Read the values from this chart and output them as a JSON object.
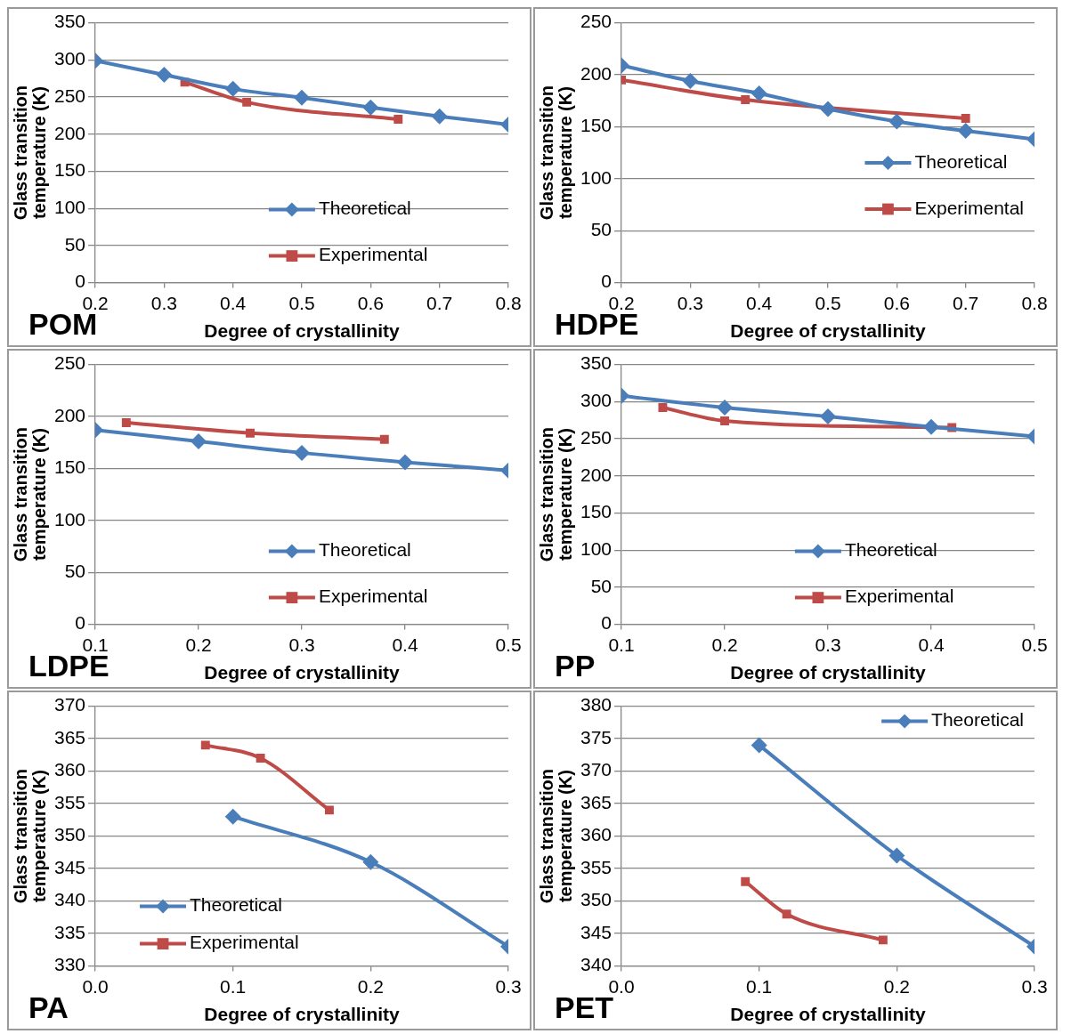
{
  "chart_data": [
    {
      "type": "line",
      "title": "POM",
      "xlabel": "Degree of crystallinity",
      "ylabel": "Glass transition temperature (K)",
      "xlim": [
        0.2,
        0.8
      ],
      "xticks": [
        0.2,
        0.3,
        0.4,
        0.5,
        0.6,
        0.7,
        0.8
      ],
      "ylim": [
        0,
        350
      ],
      "yticks": [
        0,
        50,
        100,
        150,
        200,
        250,
        300,
        350
      ],
      "grid": "y",
      "legend": "bottom right",
      "series": [
        {
          "name": "Theoretical",
          "color": "#4a7ebb",
          "marker": "diamond",
          "x": [
            0.2,
            0.3,
            0.4,
            0.5,
            0.6,
            0.7,
            0.8
          ],
          "values": [
            299,
            280,
            261,
            249,
            236,
            224,
            213
          ]
        },
        {
          "name": "Experimental",
          "color": "#be4b48",
          "marker": "square",
          "x": [
            0.33,
            0.42,
            0.64
          ],
          "values": [
            270,
            243,
            220
          ]
        }
      ]
    },
    {
      "type": "line",
      "title": "HDPE",
      "xlabel": "Degree of crystallinity",
      "ylabel": "Glass transition temperature (K)",
      "xlim": [
        0.2,
        0.8
      ],
      "xticks": [
        0.2,
        0.3,
        0.4,
        0.5,
        0.6,
        0.7,
        0.8
      ],
      "ylim": [
        0,
        250
      ],
      "yticks": [
        0,
        50,
        100,
        150,
        200,
        250
      ],
      "grid": "y",
      "legend": "right",
      "series": [
        {
          "name": "Theoretical",
          "color": "#4a7ebb",
          "marker": "diamond",
          "x": [
            0.2,
            0.3,
            0.4,
            0.5,
            0.6,
            0.7,
            0.8
          ],
          "values": [
            209,
            194,
            182,
            167,
            155,
            146,
            138
          ]
        },
        {
          "name": "Experimental",
          "color": "#be4b48",
          "marker": "square",
          "x": [
            0.2,
            0.38,
            0.7
          ],
          "values": [
            195,
            176,
            158
          ]
        }
      ]
    },
    {
      "type": "line",
      "title": "LDPE",
      "xlabel": "Degree of crystallinity",
      "ylabel": "Glass transition temperature (K)",
      "xlim": [
        0.1,
        0.5
      ],
      "xticks": [
        0.1,
        0.2,
        0.3,
        0.4,
        0.5
      ],
      "ylim": [
        0,
        250
      ],
      "yticks": [
        0,
        50,
        100,
        150,
        200,
        250
      ],
      "grid": "y",
      "legend": "bottom right",
      "series": [
        {
          "name": "Theoretical",
          "color": "#4a7ebb",
          "marker": "diamond",
          "x": [
            0.1,
            0.2,
            0.3,
            0.4,
            0.5
          ],
          "values": [
            187,
            176,
            165,
            156,
            148
          ]
        },
        {
          "name": "Experimental",
          "color": "#be4b48",
          "marker": "square",
          "x": [
            0.13,
            0.25,
            0.38
          ],
          "values": [
            194,
            184,
            178
          ]
        }
      ]
    },
    {
      "type": "line",
      "title": "PP",
      "xlabel": "Degree of crystallinity",
      "ylabel": "Glass transition temperature (K)",
      "xlim": [
        0.1,
        0.5
      ],
      "xticks": [
        0.1,
        0.2,
        0.3,
        0.4,
        0.5
      ],
      "ylim": [
        0,
        350
      ],
      "yticks": [
        0,
        50,
        100,
        150,
        200,
        250,
        300,
        350
      ],
      "grid": "y",
      "legend": "bottom right",
      "series": [
        {
          "name": "Theoretical",
          "color": "#4a7ebb",
          "marker": "diamond",
          "x": [
            0.1,
            0.2,
            0.3,
            0.4,
            0.5
          ],
          "values": [
            308,
            292,
            280,
            266,
            253
          ]
        },
        {
          "name": "Experimental",
          "color": "#be4b48",
          "marker": "square",
          "x": [
            0.14,
            0.2,
            0.42
          ],
          "values": [
            292,
            274,
            265
          ]
        }
      ]
    },
    {
      "type": "line",
      "title": "PA",
      "xlabel": "Degree of crystallinity",
      "ylabel": "Glass transition temperature (K)",
      "xlim": [
        0,
        0.3
      ],
      "xticks": [
        {
          "value": 0,
          "label": "0.0"
        },
        0.1,
        0.2,
        0.3
      ],
      "ylim": [
        330,
        370
      ],
      "yticks": [
        330,
        335,
        340,
        345,
        350,
        355,
        360,
        365,
        370
      ],
      "grid": "y",
      "legend": "bottom left",
      "series": [
        {
          "name": "Theoretical",
          "color": "#4a7ebb",
          "marker": "diamond",
          "x": [
            0.1,
            0.2,
            0.3
          ],
          "values": [
            353,
            346,
            333
          ]
        },
        {
          "name": "Experimental",
          "color": "#be4b48",
          "marker": "square",
          "x": [
            0.08,
            0.12,
            0.17
          ],
          "values": [
            364,
            362,
            354
          ]
        }
      ]
    },
    {
      "type": "line",
      "title": "PET",
      "xlabel": "Degree of crystallinity",
      "ylabel": "Glass transition temperature (K)",
      "xlim": [
        0,
        0.3
      ],
      "xticks": [
        {
          "value": 0,
          "label": "0.0"
        },
        0.1,
        0.2,
        0.3
      ],
      "ylim": [
        340,
        380
      ],
      "yticks": [
        340,
        345,
        350,
        355,
        360,
        365,
        370,
        375,
        380
      ],
      "grid": "y",
      "legend": "top right",
      "series": [
        {
          "name": "Theoretical",
          "color": "#4a7ebb",
          "marker": "diamond",
          "x": [
            0.1,
            0.2,
            0.3
          ],
          "values": [
            374,
            357,
            343
          ]
        },
        {
          "color": "#be4b48",
          "marker": "square",
          "x": [
            0.09,
            0.12,
            0.19
          ],
          "values": [
            353,
            348,
            344
          ]
        }
      ]
    }
  ]
}
